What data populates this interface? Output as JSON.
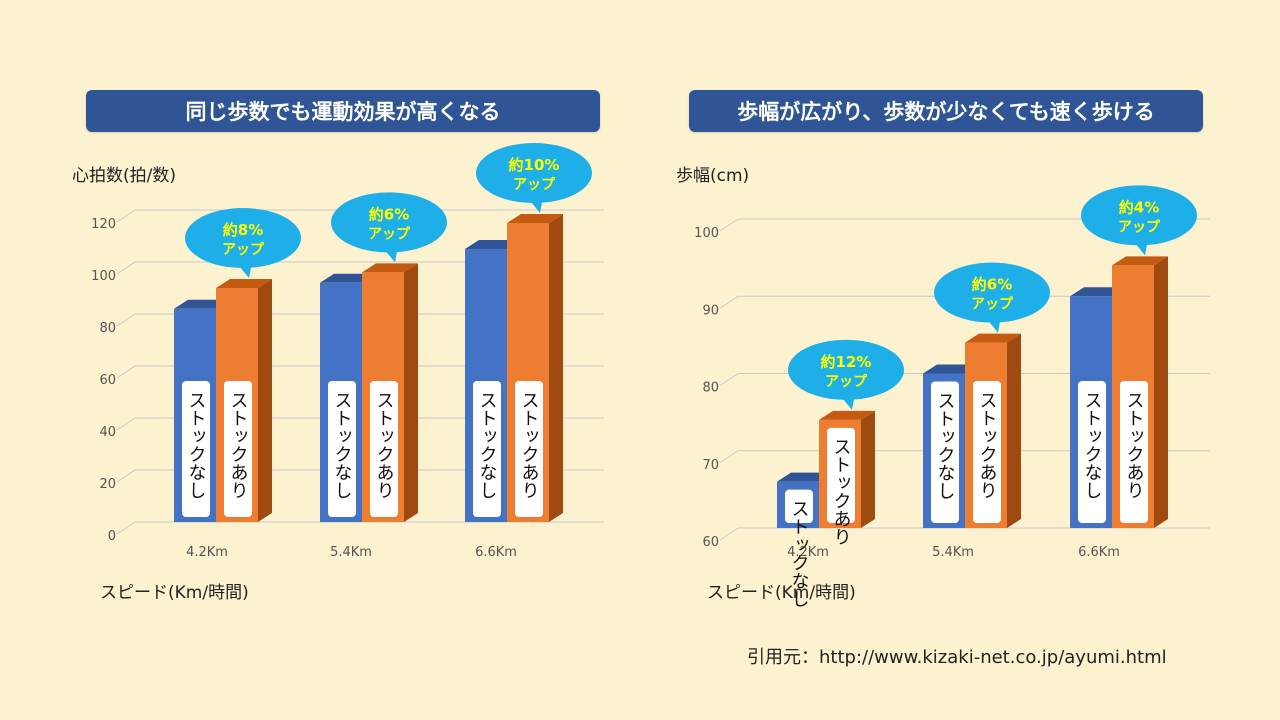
{
  "colors": {
    "background": "#fdf2cf",
    "banner": "#2f5597",
    "without_stick_front": "#4472c4",
    "without_stick_top": "#2f5597",
    "with_stick_front": "#ed7d31",
    "with_stick_top": "#c55a11",
    "with_stick_side": "#9e4a10",
    "callout": "#1eaee8",
    "callout_text": "#ffff00"
  },
  "source_text": "引用元：http://www.kizaki-net.co.jp/ayumi.html",
  "chart_data": [
    {
      "type": "bar",
      "title": "同じ歩数でも運動効果が高くなる",
      "ylabel": "心拍数(拍/数)",
      "xlabel": "スピード(Km/時間)",
      "categories": [
        "4.2Km",
        "5.4Km",
        "6.6Km"
      ],
      "ylim": [
        0,
        120
      ],
      "yticks": [
        0,
        20,
        40,
        60,
        80,
        100,
        120
      ],
      "grid": true,
      "series": [
        {
          "name": "ストックなし",
          "values": [
            82,
            92,
            105
          ]
        },
        {
          "name": "ストックあり",
          "values": [
            90,
            96,
            115
          ]
        }
      ],
      "annotations": [
        {
          "category": "4.2Km",
          "line1": "約8%",
          "line2": "アップ"
        },
        {
          "category": "5.4Km",
          "line1": "約6%",
          "line2": "アップ"
        },
        {
          "category": "6.6Km",
          "line1": "約10%",
          "line2": "アップ"
        }
      ]
    },
    {
      "type": "bar",
      "title": "歩幅が広がり、歩数が少なくても速く歩ける",
      "ylabel": "歩幅(cm)",
      "xlabel": "スピード(Km/時間)",
      "categories": [
        "4.2Km",
        "5.4Km",
        "6.6Km"
      ],
      "ylim": [
        60,
        100
      ],
      "yticks": [
        60,
        70,
        80,
        90,
        100
      ],
      "grid": true,
      "series": [
        {
          "name": "ストックなし",
          "values": [
            66,
            80,
            90
          ]
        },
        {
          "name": "ストックあり",
          "values": [
            74,
            84,
            94
          ]
        }
      ],
      "annotations": [
        {
          "category": "4.2Km",
          "line1": "約12%",
          "line2": "アップ"
        },
        {
          "category": "5.4Km",
          "line1": "約6%",
          "line2": "アップ"
        },
        {
          "category": "6.6Km",
          "line1": "約4%",
          "line2": "アップ"
        }
      ]
    }
  ]
}
